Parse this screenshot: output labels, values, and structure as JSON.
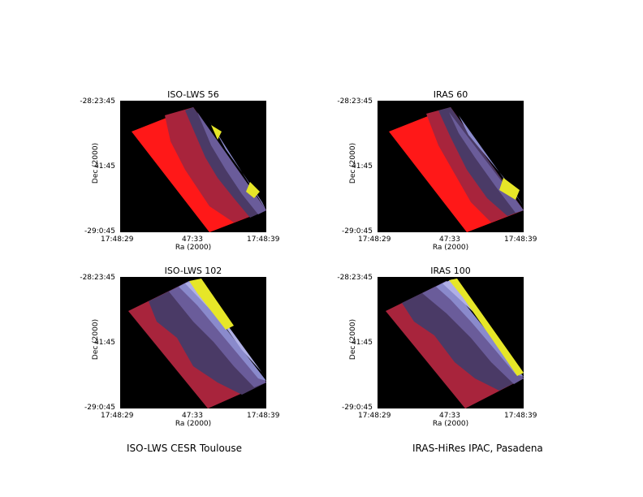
{
  "panels": [
    {
      "title": "ISO-LWS 56",
      "xticks": [
        "17:48:29",
        "47:33",
        "17:48:39"
      ],
      "yticks": [
        "-28:23:45",
        "41:45",
        "-29:0:45"
      ],
      "xlabel": "Ra (2000)",
      "ylabel": "Dec (2000)"
    },
    {
      "title": "IRAS 60",
      "xticks": [
        "17:48:29",
        "47:33",
        "17:48:39"
      ],
      "yticks": [
        "-28:23:45",
        "41:45",
        "-29:0:45"
      ],
      "xlabel": "Ra (2000)",
      "ylabel": "Dec (2000)"
    },
    {
      "title": "ISO-LWS 102",
      "xticks": [
        "17:48:29",
        "47:33",
        "17:48:39"
      ],
      "yticks": [
        "-28:23:45",
        "41:45",
        "-29:0:45"
      ],
      "xlabel": "Ra (2000)",
      "ylabel": "Dec (2000)"
    },
    {
      "title": "IRAS 100",
      "xticks": [
        "17:48:29",
        "47:33",
        "17:48:39"
      ],
      "yticks": [
        "-28:23:45",
        "41:45",
        "-29:0:45"
      ],
      "xlabel": "Ra (2000)",
      "ylabel": "Dec (2000)"
    }
  ],
  "footer": {
    "left": "ISO-LWS CESR Toulouse",
    "right": "IRAS-HiRes IPAC, Pasadena"
  },
  "colors": {
    "background": "#000000",
    "red": "#ff1818",
    "dark_red": "#a8243c",
    "purple_dark": "#4a3a66",
    "purple": "#6a5c9a",
    "blue_light": "#8a8acc",
    "lavender": "#b0b0e6",
    "yellow": "#e6e628"
  }
}
